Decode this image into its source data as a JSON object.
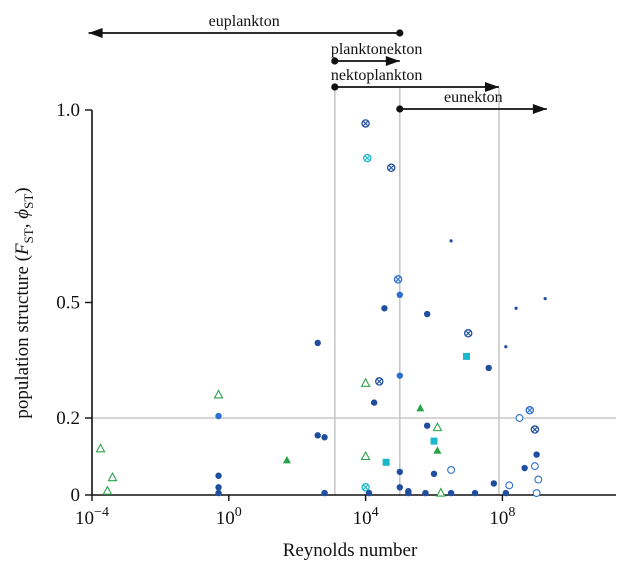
{
  "chart_data": {
    "type": "scatter",
    "xlabel": "Reynolds number",
    "ylabel": "population structure (F_ST, φ_ST)",
    "x_scale": "log10",
    "xlim_log10": [
      -4,
      9.4
    ],
    "ylim": [
      0,
      1.0
    ],
    "x_tick_labels": [
      {
        "base": "10",
        "exp": "−4",
        "log10": -4
      },
      {
        "base": "10",
        "exp": "0",
        "log10": 0
      },
      {
        "base": "10",
        "exp": "4",
        "log10": 4
      },
      {
        "base": "10",
        "exp": "8",
        "log10": 8
      }
    ],
    "y_ticks": [
      {
        "label": "1.0",
        "value": 1.0
      },
      {
        "label": "0.5",
        "value": 0.5
      },
      {
        "label": "0.2",
        "value": 0.2
      },
      {
        "label": "0",
        "value": 0
      }
    ],
    "grid": {
      "horizontal_line_y": 0.2,
      "vertical_lines_log10_re": [
        3.1,
        5.0,
        7.9
      ]
    },
    "ranges": [
      {
        "label": "euplankton",
        "start_log10": 5.0,
        "end_log10": -4.1,
        "direction": "left"
      },
      {
        "label": "planktonekton",
        "start_log10": 3.1,
        "end_log10": 5.0,
        "direction": "right"
      },
      {
        "label": "nektoplankton",
        "start_log10": 3.1,
        "end_log10": 7.9,
        "direction": "right"
      },
      {
        "label": "eunekton",
        "start_log10": 5.0,
        "end_log10": 9.3,
        "direction": "right"
      }
    ],
    "colors": {
      "navy": "#1f4e9e",
      "royal": "#2e6fd0",
      "cyan": "#1ab8cc",
      "green": "#2aa24a",
      "grid": "#c8c8c8",
      "axis": "#111111"
    },
    "points": [
      {
        "x": -3.75,
        "y": 0.12,
        "s": "tri-open",
        "c": "green"
      },
      {
        "x": -3.4,
        "y": 0.045,
        "s": "tri-open",
        "c": "green"
      },
      {
        "x": -3.55,
        "y": 0.01,
        "s": "tri-open",
        "c": "green"
      },
      {
        "x": -0.3,
        "y": 0.26,
        "s": "tri-open",
        "c": "green"
      },
      {
        "x": -0.3,
        "y": 0.205,
        "s": "dot",
        "c": "royal"
      },
      {
        "x": -0.3,
        "y": 0.05,
        "s": "dot",
        "c": "navy"
      },
      {
        "x": -0.3,
        "y": 0.02,
        "s": "dot",
        "c": "navy"
      },
      {
        "x": -0.3,
        "y": 0.005,
        "s": "dot",
        "c": "navy"
      },
      {
        "x": 1.7,
        "y": 0.09,
        "s": "tri",
        "c": "green"
      },
      {
        "x": 2.6,
        "y": 0.395,
        "s": "dot",
        "c": "navy"
      },
      {
        "x": 2.6,
        "y": 0.155,
        "s": "dot",
        "c": "navy"
      },
      {
        "x": 2.8,
        "y": 0.15,
        "s": "dot",
        "c": "navy"
      },
      {
        "x": 2.8,
        "y": 0.005,
        "s": "dot",
        "c": "navy"
      },
      {
        "x": 4.0,
        "y": 0.965,
        "s": "xcirc",
        "c": "navy"
      },
      {
        "x": 4.05,
        "y": 0.875,
        "s": "xcirc",
        "c": "cyan"
      },
      {
        "x": 4.0,
        "y": 0.29,
        "s": "tri-open",
        "c": "green"
      },
      {
        "x": 4.0,
        "y": 0.1,
        "s": "tri-open",
        "c": "green"
      },
      {
        "x": 4.0,
        "y": 0.02,
        "s": "xcirc",
        "c": "cyan"
      },
      {
        "x": 4.1,
        "y": 0.005,
        "s": "dot",
        "c": "navy"
      },
      {
        "x": 4.25,
        "y": 0.24,
        "s": "dot",
        "c": "navy"
      },
      {
        "x": 4.4,
        "y": 0.295,
        "s": "xcirc",
        "c": "navy"
      },
      {
        "x": 4.55,
        "y": 0.485,
        "s": "dot",
        "c": "navy"
      },
      {
        "x": 4.6,
        "y": 0.085,
        "s": "square",
        "c": "cyan"
      },
      {
        "x": 4.75,
        "y": 0.85,
        "s": "xcirc",
        "c": "navy"
      },
      {
        "x": 4.95,
        "y": 0.56,
        "s": "xcirc-light",
        "c": "royal"
      },
      {
        "x": 5.0,
        "y": 0.52,
        "s": "dot",
        "c": "royal"
      },
      {
        "x": 5.0,
        "y": 0.31,
        "s": "dot",
        "c": "royal"
      },
      {
        "x": 5.0,
        "y": 0.06,
        "s": "dot",
        "c": "navy"
      },
      {
        "x": 5.0,
        "y": 0.02,
        "s": "dot",
        "c": "navy"
      },
      {
        "x": 5.25,
        "y": 0.01,
        "s": "dot",
        "c": "navy"
      },
      {
        "x": 5.25,
        "y": 0.005,
        "s": "dot",
        "c": "navy"
      },
      {
        "x": 5.6,
        "y": 0.225,
        "s": "tri",
        "c": "green"
      },
      {
        "x": 5.8,
        "y": 0.47,
        "s": "dot",
        "c": "navy"
      },
      {
        "x": 5.8,
        "y": 0.18,
        "s": "dot",
        "c": "navy"
      },
      {
        "x": 5.75,
        "y": 0.005,
        "s": "dot",
        "c": "navy"
      },
      {
        "x": 6.0,
        "y": 0.14,
        "s": "square",
        "c": "cyan"
      },
      {
        "x": 6.1,
        "y": 0.175,
        "s": "tri-open",
        "c": "green"
      },
      {
        "x": 6.1,
        "y": 0.115,
        "s": "tri",
        "c": "green"
      },
      {
        "x": 6.0,
        "y": 0.055,
        "s": "dot",
        "c": "navy"
      },
      {
        "x": 6.2,
        "y": 0.005,
        "s": "tri-open",
        "c": "green"
      },
      {
        "x": 6.5,
        "y": 0.065,
        "s": "circ-open",
        "c": "royal"
      },
      {
        "x": 6.5,
        "y": 0.66,
        "s": "small-dot",
        "c": "navy"
      },
      {
        "x": 6.5,
        "y": 0.005,
        "s": "dot",
        "c": "navy"
      },
      {
        "x": 7.0,
        "y": 0.42,
        "s": "xcirc",
        "c": "navy"
      },
      {
        "x": 6.95,
        "y": 0.36,
        "s": "square",
        "c": "cyan"
      },
      {
        "x": 7.2,
        "y": 0.005,
        "s": "dot",
        "c": "navy"
      },
      {
        "x": 7.6,
        "y": 0.33,
        "s": "dot",
        "c": "navy"
      },
      {
        "x": 7.75,
        "y": 0.03,
        "s": "dot",
        "c": "navy"
      },
      {
        "x": 8.1,
        "y": 0.385,
        "s": "small-dot",
        "c": "navy"
      },
      {
        "x": 8.1,
        "y": 0.005,
        "s": "dot",
        "c": "navy"
      },
      {
        "x": 8.2,
        "y": 0.025,
        "s": "circ-open",
        "c": "royal"
      },
      {
        "x": 8.4,
        "y": 0.485,
        "s": "small-dot",
        "c": "navy"
      },
      {
        "x": 8.5,
        "y": 0.2,
        "s": "circ-open",
        "c": "royal"
      },
      {
        "x": 8.8,
        "y": 0.22,
        "s": "xcirc",
        "c": "royal"
      },
      {
        "x": 8.65,
        "y": 0.07,
        "s": "dot",
        "c": "navy"
      },
      {
        "x": 8.95,
        "y": 0.17,
        "s": "xcirc",
        "c": "navy"
      },
      {
        "x": 9.0,
        "y": 0.105,
        "s": "dot",
        "c": "navy"
      },
      {
        "x": 8.95,
        "y": 0.075,
        "s": "circ-open",
        "c": "royal"
      },
      {
        "x": 9.05,
        "y": 0.04,
        "s": "circ-open",
        "c": "royal"
      },
      {
        "x": 9.0,
        "y": 0.005,
        "s": "circ-open",
        "c": "royal"
      },
      {
        "x": 9.25,
        "y": 0.51,
        "s": "small-dot",
        "c": "navy"
      }
    ]
  }
}
